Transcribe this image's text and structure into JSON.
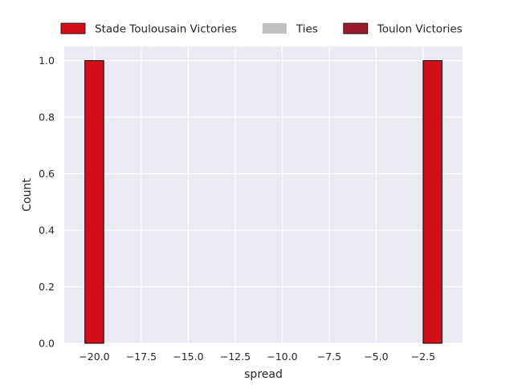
{
  "chart_data": {
    "type": "bar",
    "subtype": "histogram",
    "title": "",
    "xlabel": "spread",
    "ylabel": "Count",
    "xlim": [
      -21.6,
      -0.4
    ],
    "ylim": [
      0,
      1.05
    ],
    "x_ticks": [
      -20.0,
      -17.5,
      -15.0,
      -12.5,
      -10.0,
      -7.5,
      -5.0,
      -2.5
    ],
    "x_tick_labels": [
      "−20.0",
      "−17.5",
      "−15.0",
      "−12.5",
      "−10.0",
      "−7.5",
      "−5.0",
      "−2.5"
    ],
    "y_ticks": [
      0.0,
      0.2,
      0.4,
      0.6,
      0.8,
      1.0
    ],
    "y_tick_labels": [
      "0.0",
      "0.2",
      "0.4",
      "0.6",
      "0.8",
      "1.0"
    ],
    "grid": true,
    "legend_position": "top-center, outside",
    "series": [
      {
        "name": "Stade Toulousain Victories",
        "color": "#d40f1a",
        "bins": [
          {
            "x0": -20.5,
            "x1": -19.5,
            "count": 1
          },
          {
            "x0": -2.5,
            "x1": -1.5,
            "count": 1
          }
        ]
      },
      {
        "name": "Ties",
        "color": "#c0c0c0",
        "bins": []
      },
      {
        "name": "Toulon Victories",
        "color": "#9a1c2c",
        "bins": []
      }
    ]
  }
}
